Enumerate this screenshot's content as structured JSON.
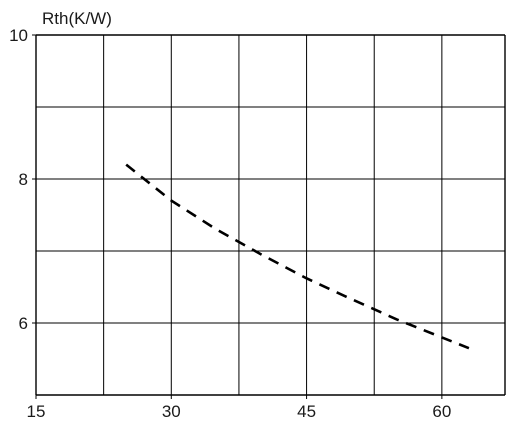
{
  "chart_data": {
    "type": "line",
    "title": "",
    "xlabel": "",
    "ylabel": "Rth(K/W)",
    "xlim": [
      15,
      67
    ],
    "ylim": [
      5,
      10
    ],
    "x_ticks": [
      15,
      30,
      45,
      60
    ],
    "y_ticks": [
      6,
      8,
      10
    ],
    "x_tick_labels": [
      "15",
      "30",
      "45",
      "60"
    ],
    "y_tick_labels": [
      "6",
      "8",
      "10"
    ],
    "x_grid": [
      15,
      22.5,
      30,
      37.5,
      45,
      52.5,
      60,
      67
    ],
    "y_grid": [
      5,
      6,
      7,
      8,
      9,
      10
    ],
    "grid": true,
    "series": [
      {
        "line_style": "dashed",
        "color": "#000000",
        "x": [
          25,
          30,
          35,
          40,
          45,
          50,
          55,
          60,
          63
        ],
        "y": [
          8.2,
          7.7,
          7.3,
          6.95,
          6.62,
          6.33,
          6.05,
          5.8,
          5.65
        ]
      }
    ]
  }
}
